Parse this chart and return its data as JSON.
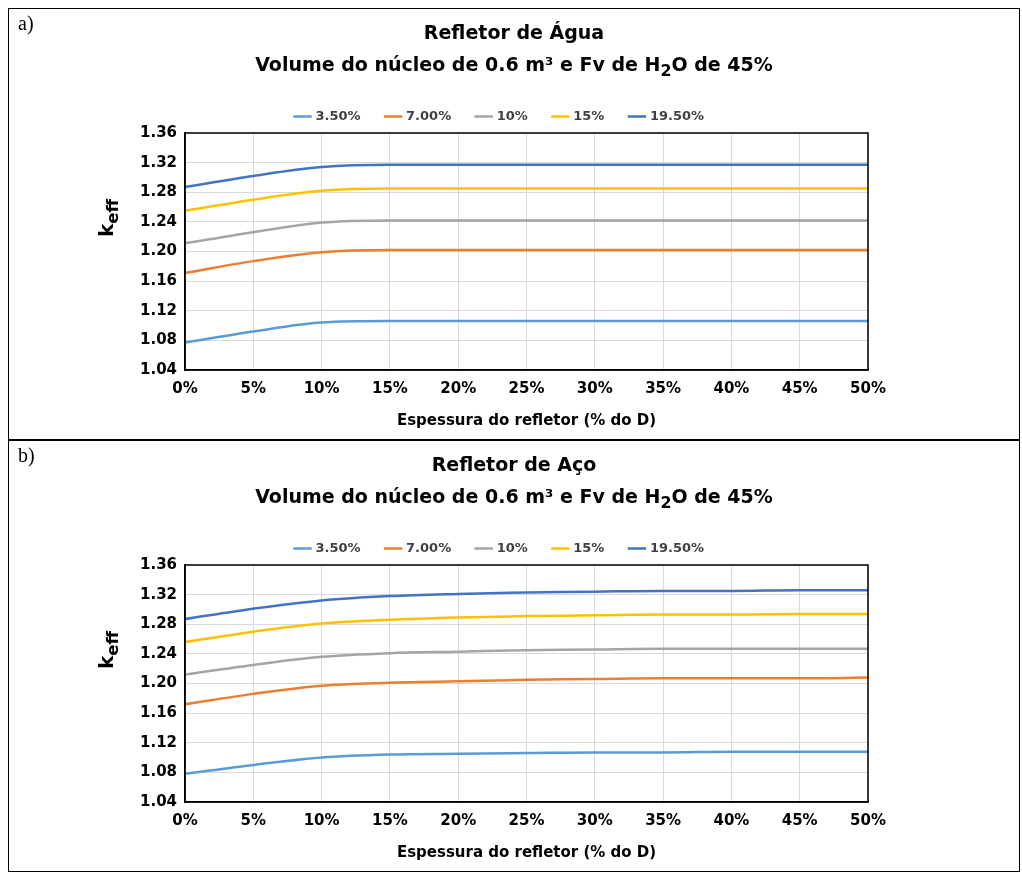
{
  "chart_data": [
    {
      "type": "line",
      "title": "Refletor de Água",
      "subtitle": "Volume do núcleo de 0.6 m³ e Fv de H$_{2}$O de 45%",
      "xlabel": "Espessura do refletor (% do D)",
      "ylabel": "k$_{eff}$",
      "annotations": [
        "a)"
      ],
      "x": [
        0,
        5,
        10,
        15,
        20,
        25,
        30,
        35,
        40,
        45,
        50
      ],
      "series": [
        {
          "name": "3.50%",
          "color": "#5b9bd5",
          "values": [
            1.077,
            1.092,
            1.104,
            1.106,
            1.106,
            1.106,
            1.106,
            1.106,
            1.106,
            1.106,
            1.106
          ]
        },
        {
          "name": "7.00%",
          "color": "#ed7d31",
          "values": [
            1.171,
            1.187,
            1.199,
            1.202,
            1.202,
            1.202,
            1.202,
            1.202,
            1.202,
            1.202,
            1.202
          ]
        },
        {
          "name": "10%",
          "color": "#a5a5a5",
          "values": [
            1.211,
            1.226,
            1.239,
            1.242,
            1.242,
            1.242,
            1.242,
            1.242,
            1.242,
            1.242,
            1.242
          ]
        },
        {
          "name": "15%",
          "color": "#ffc000",
          "values": [
            1.255,
            1.27,
            1.282,
            1.285,
            1.285,
            1.285,
            1.285,
            1.285,
            1.285,
            1.285,
            1.285
          ]
        },
        {
          "name": "19.50%",
          "color": "#4472c4",
          "values": [
            1.287,
            1.302,
            1.314,
            1.317,
            1.317,
            1.317,
            1.317,
            1.317,
            1.317,
            1.317,
            1.317
          ]
        }
      ],
      "xlim": [
        0,
        50
      ],
      "xticks": [
        {
          "value": 0,
          "label": "0%"
        },
        {
          "value": 5,
          "label": "5%"
        },
        {
          "value": 10,
          "label": "10%"
        },
        {
          "value": 15,
          "label": "15%"
        },
        {
          "value": 20,
          "label": "20%"
        },
        {
          "value": 25,
          "label": "25%"
        },
        {
          "value": 30,
          "label": "30%"
        },
        {
          "value": 35,
          "label": "35%"
        },
        {
          "value": 40,
          "label": "40%"
        },
        {
          "value": 45,
          "label": "45%"
        },
        {
          "value": 50,
          "label": "50%"
        }
      ],
      "ylim": [
        1.04,
        1.36
      ],
      "yticks": [
        {
          "value": 1.04,
          "label": "1.04"
        },
        {
          "value": 1.08,
          "label": "1.08"
        },
        {
          "value": 1.12,
          "label": "1.12"
        },
        {
          "value": 1.16,
          "label": "1.16"
        },
        {
          "value": 1.2,
          "label": "1.20"
        },
        {
          "value": 1.24,
          "label": "1.24"
        },
        {
          "value": 1.28,
          "label": "1.28"
        },
        {
          "value": 1.32,
          "label": "1.32"
        },
        {
          "value": 1.36,
          "label": "1.36"
        }
      ],
      "grid": true,
      "legend": "top",
      "marker": "none",
      "line_style": "solid"
    },
    {
      "type": "line",
      "title": "Refletor de Aço",
      "subtitle": "Volume do núcleo de 0.6 m³ e Fv de H$_{2}$O de 45%",
      "xlabel": "Espessura do refletor (% do D)",
      "ylabel": "k$_{eff}$",
      "annotations": [
        "b)"
      ],
      "x": [
        0,
        5,
        10,
        15,
        20,
        25,
        30,
        35,
        40,
        45,
        50
      ],
      "series": [
        {
          "name": "3.50%",
          "color": "#5b9bd5",
          "values": [
            1.078,
            1.09,
            1.1,
            1.104,
            1.105,
            1.106,
            1.107,
            1.107,
            1.108,
            1.108,
            1.108
          ]
        },
        {
          "name": "7.00%",
          "color": "#ed7d31",
          "values": [
            1.172,
            1.186,
            1.197,
            1.201,
            1.203,
            1.205,
            1.206,
            1.207,
            1.207,
            1.207,
            1.208
          ]
        },
        {
          "name": "10%",
          "color": "#a5a5a5",
          "values": [
            1.212,
            1.225,
            1.236,
            1.241,
            1.243,
            1.245,
            1.246,
            1.247,
            1.247,
            1.247,
            1.247
          ]
        },
        {
          "name": "15%",
          "color": "#ffc000",
          "values": [
            1.256,
            1.27,
            1.281,
            1.286,
            1.289,
            1.291,
            1.292,
            1.293,
            1.293,
            1.294,
            1.294
          ]
        },
        {
          "name": "19.50%",
          "color": "#4472c4",
          "values": [
            1.287,
            1.301,
            1.312,
            1.318,
            1.321,
            1.323,
            1.324,
            1.325,
            1.325,
            1.326,
            1.326
          ]
        }
      ],
      "xlim": [
        0,
        50
      ],
      "xticks": [
        {
          "value": 0,
          "label": "0%"
        },
        {
          "value": 5,
          "label": "5%"
        },
        {
          "value": 10,
          "label": "10%"
        },
        {
          "value": 15,
          "label": "15%"
        },
        {
          "value": 20,
          "label": "20%"
        },
        {
          "value": 25,
          "label": "25%"
        },
        {
          "value": 30,
          "label": "30%"
        },
        {
          "value": 35,
          "label": "35%"
        },
        {
          "value": 40,
          "label": "40%"
        },
        {
          "value": 45,
          "label": "45%"
        },
        {
          "value": 50,
          "label": "50%"
        }
      ],
      "ylim": [
        1.04,
        1.36
      ],
      "yticks": [
        {
          "value": 1.04,
          "label": "1.04"
        },
        {
          "value": 1.08,
          "label": "1.08"
        },
        {
          "value": 1.12,
          "label": "1.12"
        },
        {
          "value": 1.16,
          "label": "1.16"
        },
        {
          "value": 1.2,
          "label": "1.20"
        },
        {
          "value": 1.24,
          "label": "1.24"
        },
        {
          "value": 1.28,
          "label": "1.28"
        },
        {
          "value": 1.32,
          "label": "1.32"
        },
        {
          "value": 1.36,
          "label": "1.36"
        }
      ],
      "grid": true,
      "legend": "top",
      "marker": "none",
      "line_style": "solid"
    }
  ]
}
